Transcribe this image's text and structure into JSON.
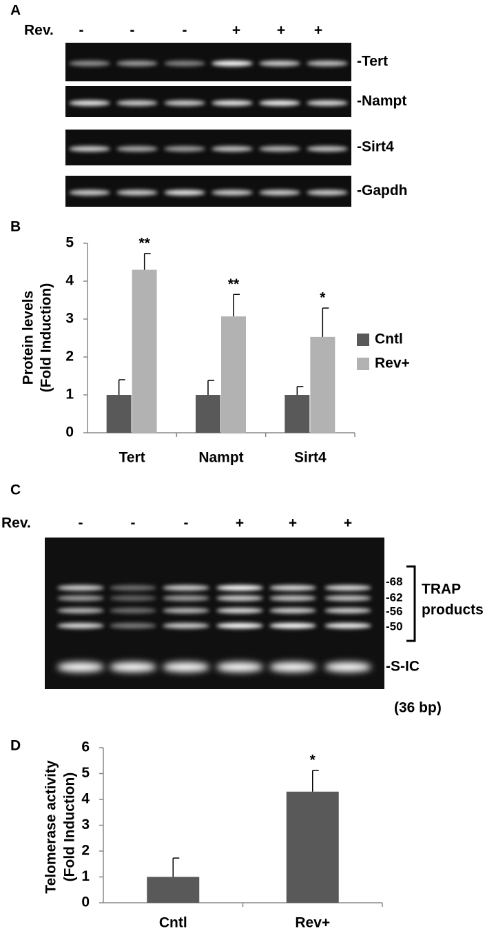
{
  "panel_labels": [
    "A",
    "B",
    "C",
    "D"
  ],
  "gel_a": {
    "row_label": "Rev.",
    "lanes": [
      "-",
      "-",
      "-",
      "+",
      "+",
      "+"
    ],
    "bands": [
      "-Tert",
      "-Nampt",
      "-Sirt4",
      "-Gapdh"
    ]
  },
  "gel_c": {
    "row_label": "Rev.",
    "lanes": [
      "-",
      "-",
      "-",
      "+",
      "+",
      "+"
    ],
    "markers": [
      "-68",
      "-62",
      "-56",
      "-50"
    ],
    "bracket_label": [
      "TRAP",
      "products"
    ],
    "ic_label": [
      "-S-IC",
      "(36 bp)"
    ]
  },
  "chart_data": [
    {
      "type": "bar",
      "y_label": [
        "Protein levels",
        "(Fold Induction)"
      ],
      "categories": [
        "Tert",
        "Nampt",
        "Sirt4"
      ],
      "series": [
        {
          "name": "Cntl",
          "color": "#595959",
          "values": [
            1,
            1,
            1
          ],
          "errors": [
            0.4,
            0.38,
            0.22
          ]
        },
        {
          "name": "Rev+",
          "color": "#b2b2b2",
          "values": [
            4.3,
            3.07,
            2.53
          ],
          "errors": [
            0.43,
            0.58,
            0.76
          ],
          "annotations": [
            "**",
            "**",
            "*"
          ]
        }
      ],
      "ylim": [
        0,
        5
      ],
      "yticks": [
        0,
        1,
        2,
        3,
        4,
        5
      ],
      "legend": "right"
    },
    {
      "type": "bar",
      "y_label": [
        "Telomerase activity",
        "(Fold Induction)"
      ],
      "categories": [
        "Cntl",
        "Rev+"
      ],
      "values": [
        1,
        4.3
      ],
      "errors": [
        0.73,
        0.82
      ],
      "annotations": [
        null,
        "*"
      ],
      "color": "#595959",
      "ylim": [
        0,
        6
      ],
      "yticks": [
        0,
        1,
        2,
        3,
        4,
        5,
        6
      ]
    }
  ]
}
